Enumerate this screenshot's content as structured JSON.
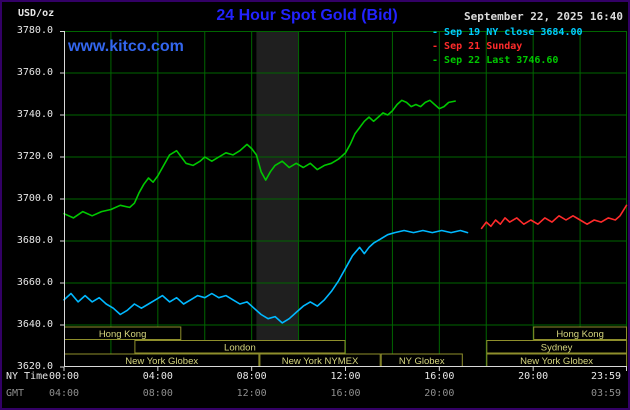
{
  "header": {
    "units": "USD/oz",
    "title": "24 Hour Spot Gold (Bid)",
    "datetime": "September 22, 2025 16:40",
    "watermark": "www.kitco.com"
  },
  "legend": {
    "items": [
      {
        "label": "Sep 19 NY close 3684.00",
        "color": "#00ccff"
      },
      {
        "label": "Sep 21 Sunday",
        "color": "#ff2b2b"
      },
      {
        "label": "Sep 22 Last 3746.60",
        "color": "#00c800"
      }
    ]
  },
  "axes": {
    "y_ticks": [
      "3780.0",
      "3760.0",
      "3740.0",
      "3720.0",
      "3700.0",
      "3680.0",
      "3660.0",
      "3640.0",
      "3620.0"
    ],
    "x_axis_label": "NY Time",
    "gmt_axis_label": "GMT",
    "ny_ticks": [
      {
        "hour": 0,
        "label": "00:00"
      },
      {
        "hour": 4,
        "label": "04:00"
      },
      {
        "hour": 8,
        "label": "08:00"
      },
      {
        "hour": 12,
        "label": "12:00"
      },
      {
        "hour": 16,
        "label": "16:00"
      },
      {
        "hour": 20,
        "label": "20:00"
      },
      {
        "hour": 23.983,
        "label": "23:59"
      }
    ],
    "gmt_ticks": [
      {
        "hour": 0,
        "label": "04:00"
      },
      {
        "hour": 4,
        "label": "08:00"
      },
      {
        "hour": 8,
        "label": "12:00"
      },
      {
        "hour": 12,
        "label": "16:00"
      },
      {
        "hour": 16,
        "label": "20:00"
      },
      {
        "hour": 23.983,
        "label": "03:59"
      }
    ]
  },
  "sessions": {
    "box_border": "#8f8f2c",
    "label_color": "#d6d67e",
    "rows": [
      {
        "boxes": [
          {
            "label": "Hong Kong",
            "from": 0,
            "to": 5
          },
          {
            "label": "Hong Kong",
            "from": 20,
            "to": 24
          }
        ]
      },
      {
        "boxes": [
          {
            "label": "London",
            "from": 3,
            "to": 12
          },
          {
            "label": "Sydney",
            "from": 18,
            "to": 24
          }
        ]
      },
      {
        "boxes": [
          {
            "label": "New York Globex",
            "from": 0,
            "to": 8.33
          },
          {
            "label": "New York NYMEX",
            "from": 8.33,
            "to": 13.5
          },
          {
            "label": "NY Globex",
            "from": 13.5,
            "to": 17
          },
          {
            "label": "New York Globex",
            "from": 18,
            "to": 24
          }
        ]
      }
    ]
  },
  "plot": {
    "bands": [
      {
        "from": 8.2,
        "to": 10.0,
        "color": "#1f1f1f"
      }
    ],
    "grid_color": "#006600",
    "axis_color": "#d9d9d9",
    "x_grid_step_hours": 2
  },
  "chart_data": {
    "type": "line",
    "title": "24 Hour Spot Gold (Bid)",
    "ylabel": "USD/oz",
    "xlabel": "NY Time (hour of day)",
    "xlim": [
      0,
      24
    ],
    "ylim": [
      3620,
      3780
    ],
    "y_tick_step": 20,
    "x_tick_hours": [
      0,
      4,
      8,
      12,
      16,
      20,
      23.983
    ],
    "grid": true,
    "legend_position": "top-right",
    "background": "#000000",
    "series": [
      {
        "key": "sep19",
        "name": "Sep 19 NY close 3684.00",
        "color": "#00b8ff",
        "close_value": 3684.0,
        "points": [
          [
            0,
            3652
          ],
          [
            0.3,
            3655
          ],
          [
            0.6,
            3651
          ],
          [
            0.9,
            3654
          ],
          [
            1.2,
            3651
          ],
          [
            1.5,
            3653
          ],
          [
            1.8,
            3650
          ],
          [
            2.1,
            3648
          ],
          [
            2.4,
            3645
          ],
          [
            2.7,
            3647
          ],
          [
            3,
            3650
          ],
          [
            3.3,
            3648
          ],
          [
            3.6,
            3650
          ],
          [
            3.9,
            3652
          ],
          [
            4.2,
            3654
          ],
          [
            4.5,
            3651
          ],
          [
            4.8,
            3653
          ],
          [
            5.1,
            3650
          ],
          [
            5.4,
            3652
          ],
          [
            5.7,
            3654
          ],
          [
            6,
            3653
          ],
          [
            6.3,
            3655
          ],
          [
            6.6,
            3653
          ],
          [
            6.9,
            3654
          ],
          [
            7.2,
            3652
          ],
          [
            7.5,
            3650
          ],
          [
            7.8,
            3651
          ],
          [
            8.1,
            3648
          ],
          [
            8.4,
            3645
          ],
          [
            8.7,
            3643
          ],
          [
            9,
            3644
          ],
          [
            9.3,
            3641
          ],
          [
            9.6,
            3643
          ],
          [
            9.9,
            3646
          ],
          [
            10.2,
            3649
          ],
          [
            10.5,
            3651
          ],
          [
            10.8,
            3649
          ],
          [
            11.1,
            3652
          ],
          [
            11.4,
            3656
          ],
          [
            11.7,
            3661
          ],
          [
            12,
            3667
          ],
          [
            12.3,
            3673
          ],
          [
            12.6,
            3677
          ],
          [
            12.8,
            3674
          ],
          [
            13,
            3677
          ],
          [
            13.2,
            3679
          ],
          [
            13.5,
            3681
          ],
          [
            13.8,
            3683
          ],
          [
            14.1,
            3684
          ],
          [
            14.5,
            3685
          ],
          [
            14.9,
            3684
          ],
          [
            15.3,
            3685
          ],
          [
            15.7,
            3684
          ],
          [
            16.1,
            3685
          ],
          [
            16.5,
            3684
          ],
          [
            16.9,
            3685
          ],
          [
            17.2,
            3684
          ]
        ]
      },
      {
        "key": "sep21",
        "name": "Sep 21 Sunday",
        "color": "#ff2b2b",
        "points": [
          [
            17.8,
            3686
          ],
          [
            18,
            3689
          ],
          [
            18.2,
            3687
          ],
          [
            18.4,
            3690
          ],
          [
            18.6,
            3688
          ],
          [
            18.8,
            3691
          ],
          [
            19,
            3689
          ],
          [
            19.3,
            3691
          ],
          [
            19.6,
            3688
          ],
          [
            19.9,
            3690
          ],
          [
            20.2,
            3688
          ],
          [
            20.5,
            3691
          ],
          [
            20.8,
            3689
          ],
          [
            21.1,
            3692
          ],
          [
            21.4,
            3690
          ],
          [
            21.7,
            3692
          ],
          [
            22,
            3690
          ],
          [
            22.3,
            3688
          ],
          [
            22.6,
            3690
          ],
          [
            22.9,
            3689
          ],
          [
            23.2,
            3691
          ],
          [
            23.5,
            3690
          ],
          [
            23.7,
            3692
          ],
          [
            23.98,
            3697
          ]
        ]
      },
      {
        "key": "sep22",
        "name": "Sep 22 Last 3746.60",
        "color": "#00c800",
        "last_value": 3746.6,
        "points": [
          [
            0,
            3693
          ],
          [
            0.4,
            3691
          ],
          [
            0.8,
            3694
          ],
          [
            1.2,
            3692
          ],
          [
            1.6,
            3694
          ],
          [
            2,
            3695
          ],
          [
            2.4,
            3697
          ],
          [
            2.8,
            3696
          ],
          [
            3,
            3698
          ],
          [
            3.2,
            3703
          ],
          [
            3.4,
            3707
          ],
          [
            3.6,
            3710
          ],
          [
            3.8,
            3708
          ],
          [
            4,
            3711
          ],
          [
            4.2,
            3715
          ],
          [
            4.5,
            3721
          ],
          [
            4.8,
            3723
          ],
          [
            5,
            3720
          ],
          [
            5.2,
            3717
          ],
          [
            5.5,
            3716
          ],
          [
            5.8,
            3718
          ],
          [
            6,
            3720
          ],
          [
            6.3,
            3718
          ],
          [
            6.6,
            3720
          ],
          [
            6.9,
            3722
          ],
          [
            7.2,
            3721
          ],
          [
            7.5,
            3723
          ],
          [
            7.8,
            3726
          ],
          [
            8,
            3724
          ],
          [
            8.2,
            3721
          ],
          [
            8.4,
            3713
          ],
          [
            8.6,
            3709
          ],
          [
            8.8,
            3713
          ],
          [
            9,
            3716
          ],
          [
            9.3,
            3718
          ],
          [
            9.6,
            3715
          ],
          [
            9.9,
            3717
          ],
          [
            10.2,
            3715
          ],
          [
            10.5,
            3717
          ],
          [
            10.8,
            3714
          ],
          [
            11.1,
            3716
          ],
          [
            11.4,
            3717
          ],
          [
            11.7,
            3719
          ],
          [
            12,
            3722
          ],
          [
            12.2,
            3726
          ],
          [
            12.4,
            3731
          ],
          [
            12.6,
            3734
          ],
          [
            12.8,
            3737
          ],
          [
            13,
            3739
          ],
          [
            13.2,
            3737
          ],
          [
            13.4,
            3739
          ],
          [
            13.6,
            3741
          ],
          [
            13.8,
            3740
          ],
          [
            14,
            3742
          ],
          [
            14.2,
            3745
          ],
          [
            14.4,
            3747
          ],
          [
            14.6,
            3746
          ],
          [
            14.8,
            3744
          ],
          [
            15,
            3745
          ],
          [
            15.2,
            3744
          ],
          [
            15.4,
            3746
          ],
          [
            15.6,
            3747
          ],
          [
            15.8,
            3745
          ],
          [
            16,
            3743
          ],
          [
            16.2,
            3744
          ],
          [
            16.4,
            3746
          ],
          [
            16.67,
            3746.6
          ]
        ]
      }
    ]
  }
}
